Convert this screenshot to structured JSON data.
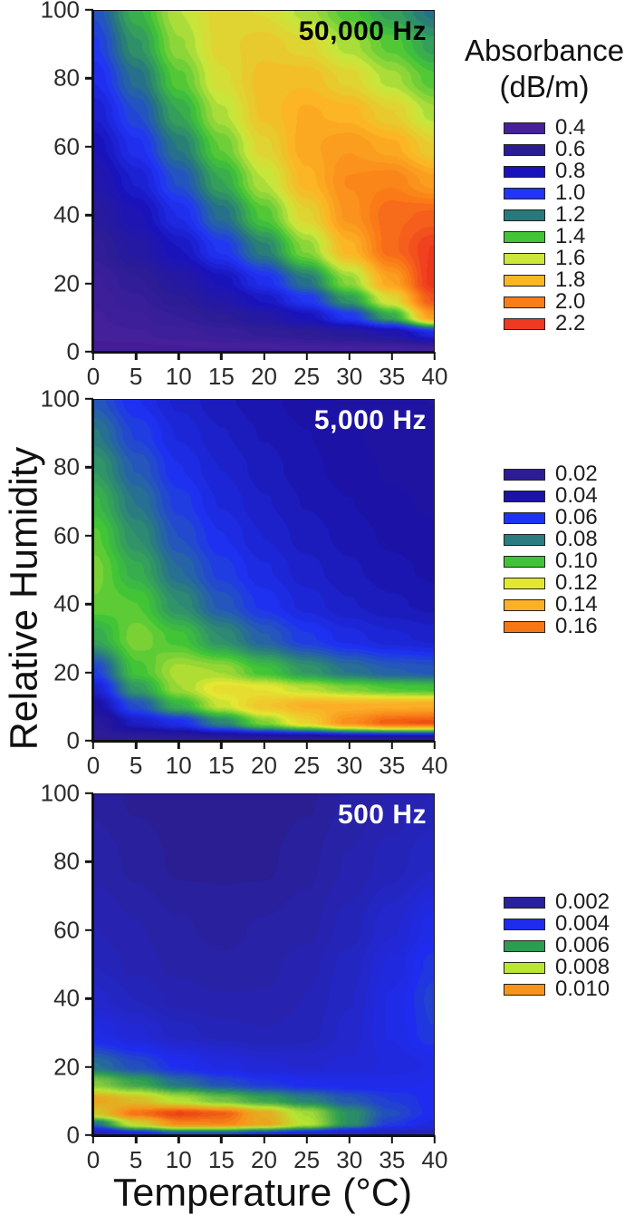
{
  "figure": {
    "xlabel": "Temperature (°C)",
    "ylabel": "Relative Humidity",
    "colorbar_title": "Absorbance",
    "colorbar_units": "(dB/m)"
  },
  "chart_data": [
    {
      "type": "heatmap",
      "title": "50,000 Hz",
      "title_color": "#000000",
      "x_axis": {
        "label": "Temperature (°C)",
        "range": [
          0,
          40
        ],
        "ticks": [
          0,
          5,
          10,
          15,
          20,
          25,
          30,
          35,
          40
        ]
      },
      "y_axis": {
        "label": "Relative Humidity",
        "range": [
          0,
          100
        ],
        "ticks": [
          0,
          20,
          40,
          60,
          80,
          100
        ]
      },
      "legend": {
        "labels": [
          "0.4",
          "0.6",
          "0.8",
          "1.0",
          "1.2",
          "1.4",
          "1.6",
          "1.8",
          "2.0",
          "2.2"
        ],
        "colors": [
          "#47209c",
          "#2b1c96",
          "#1a13bb",
          "#2134f7",
          "#27797c",
          "#41c437",
          "#cde63a",
          "#fcb525",
          "#fa7d18",
          "#ee3a20"
        ]
      },
      "colormap": {
        "levels": [
          0.3,
          0.4,
          0.6,
          0.8,
          1.0,
          1.2,
          1.4,
          1.6,
          1.8,
          2.0,
          2.2,
          2.3
        ],
        "colors": [
          "#33106b",
          "#47209c",
          "#2b1c96",
          "#1a13bb",
          "#2134f7",
          "#27797c",
          "#41c437",
          "#cde63a",
          "#fcb525",
          "#fa7d18",
          "#ee3a20",
          "#e02a10"
        ]
      },
      "grid": {
        "x": [
          0,
          5,
          10,
          15,
          20,
          25,
          30,
          35,
          40
        ],
        "y": [
          0,
          5,
          10,
          15,
          20,
          30,
          40,
          50,
          60,
          70,
          80,
          90,
          100
        ],
        "values": [
          [
            0.38,
            0.38,
            0.39,
            0.4,
            0.4,
            0.41,
            0.42,
            0.42,
            0.43
          ],
          [
            0.42,
            0.44,
            0.47,
            0.5,
            0.54,
            0.58,
            0.64,
            0.72,
            0.92
          ],
          [
            0.44,
            0.48,
            0.53,
            0.6,
            0.68,
            0.8,
            1.0,
            1.32,
            1.9
          ],
          [
            0.46,
            0.52,
            0.6,
            0.7,
            0.83,
            1.0,
            1.28,
            1.65,
            2.12
          ],
          [
            0.48,
            0.56,
            0.66,
            0.79,
            0.96,
            1.18,
            1.5,
            1.86,
            2.22
          ],
          [
            0.55,
            0.67,
            0.82,
            1.0,
            1.22,
            1.5,
            1.8,
            2.06,
            2.2
          ],
          [
            0.63,
            0.77,
            0.95,
            1.17,
            1.42,
            1.68,
            1.92,
            2.06,
            2.08
          ],
          [
            0.71,
            0.87,
            1.08,
            1.32,
            1.57,
            1.8,
            1.95,
            1.98,
            1.88
          ],
          [
            0.79,
            0.97,
            1.2,
            1.45,
            1.68,
            1.85,
            1.9,
            1.84,
            1.7
          ],
          [
            0.87,
            1.07,
            1.32,
            1.56,
            1.75,
            1.83,
            1.8,
            1.7,
            1.55
          ],
          [
            0.95,
            1.17,
            1.43,
            1.64,
            1.76,
            1.77,
            1.68,
            1.55,
            1.42
          ],
          [
            1.02,
            1.27,
            1.52,
            1.68,
            1.72,
            1.67,
            1.55,
            1.43,
            1.3
          ],
          [
            1.08,
            1.35,
            1.57,
            1.68,
            1.65,
            1.55,
            1.42,
            1.3,
            1.18
          ]
        ]
      }
    },
    {
      "type": "heatmap",
      "title": "5,000 Hz",
      "title_color": "#ffffff",
      "x_axis": {
        "label": "Temperature (°C)",
        "range": [
          0,
          40
        ],
        "ticks": [
          0,
          5,
          10,
          15,
          20,
          25,
          30,
          35,
          40
        ]
      },
      "y_axis": {
        "label": "Relative Humidity",
        "range": [
          0,
          100
        ],
        "ticks": [
          0,
          20,
          40,
          60,
          80,
          100
        ]
      },
      "legend": {
        "labels": [
          "0.02",
          "0.04",
          "0.06",
          "0.08",
          "0.10",
          "0.12",
          "0.14",
          "0.16"
        ],
        "colors": [
          "#2d1d95",
          "#1b12a6",
          "#1e32f2",
          "#2a7c80",
          "#3fc437",
          "#e2e832",
          "#fbb127",
          "#f87714"
        ]
      },
      "colormap": {
        "levels": [
          0.012,
          0.02,
          0.04,
          0.06,
          0.08,
          0.1,
          0.12,
          0.14,
          0.16,
          0.175
        ],
        "colors": [
          "#33106b",
          "#2d1d95",
          "#1b12a6",
          "#1e32f2",
          "#2a7c80",
          "#3fc437",
          "#e2e832",
          "#fbb127",
          "#f87714",
          "#e8300f"
        ]
      },
      "grid": {
        "x": [
          0,
          5,
          10,
          15,
          20,
          25,
          30,
          35,
          40
        ],
        "y": [
          0,
          5,
          10,
          15,
          20,
          30,
          40,
          50,
          60,
          70,
          80,
          90,
          100
        ],
        "values": [
          [
            0.02,
            0.021,
            0.022,
            0.023,
            0.024,
            0.025,
            0.026,
            0.026,
            0.026
          ],
          [
            0.026,
            0.048,
            0.058,
            0.082,
            0.108,
            0.128,
            0.152,
            0.166,
            0.168
          ],
          [
            0.038,
            0.068,
            0.095,
            0.117,
            0.132,
            0.14,
            0.14,
            0.141,
            0.142
          ],
          [
            0.05,
            0.088,
            0.112,
            0.124,
            0.122,
            0.115,
            0.108,
            0.102,
            0.1
          ],
          [
            0.064,
            0.1,
            0.114,
            0.112,
            0.1,
            0.088,
            0.078,
            0.072,
            0.07
          ],
          [
            0.092,
            0.108,
            0.1,
            0.085,
            0.072,
            0.062,
            0.056,
            0.052,
            0.05
          ],
          [
            0.105,
            0.102,
            0.085,
            0.07,
            0.06,
            0.053,
            0.048,
            0.045,
            0.043
          ],
          [
            0.107,
            0.093,
            0.075,
            0.063,
            0.055,
            0.049,
            0.045,
            0.042,
            0.04
          ],
          [
            0.103,
            0.085,
            0.068,
            0.058,
            0.051,
            0.046,
            0.043,
            0.04,
            0.038
          ],
          [
            0.096,
            0.078,
            0.063,
            0.054,
            0.048,
            0.044,
            0.041,
            0.038,
            0.037
          ],
          [
            0.088,
            0.071,
            0.058,
            0.051,
            0.046,
            0.042,
            0.039,
            0.037,
            0.036
          ],
          [
            0.079,
            0.064,
            0.054,
            0.048,
            0.044,
            0.041,
            0.038,
            0.036,
            0.035
          ],
          [
            0.07,
            0.058,
            0.05,
            0.045,
            0.042,
            0.039,
            0.037,
            0.035,
            0.034
          ]
        ]
      }
    },
    {
      "type": "heatmap",
      "title": "500 Hz",
      "title_color": "#ffffff",
      "x_axis": {
        "label": "Temperature (°C)",
        "range": [
          0,
          40
        ],
        "ticks": [
          0,
          5,
          10,
          15,
          20,
          25,
          30,
          35,
          40
        ]
      },
      "y_axis": {
        "label": "Relative Humidity",
        "range": [
          0,
          100
        ],
        "ticks": [
          0,
          20,
          40,
          60,
          80,
          100
        ]
      },
      "legend": {
        "labels": [
          "0.002",
          "0.004",
          "0.006",
          "0.008",
          "0.010"
        ],
        "colors": [
          "#29209c",
          "#1f2cf0",
          "#2d9c52",
          "#b8e632",
          "#f8941a"
        ]
      },
      "colormap": {
        "levels": [
          0.0012,
          0.002,
          0.004,
          0.006,
          0.008,
          0.01,
          0.0115
        ],
        "colors": [
          "#33106b",
          "#29209c",
          "#1f2cf0",
          "#2d9c52",
          "#b8e632",
          "#f8941a",
          "#e8300f"
        ]
      },
      "grid": {
        "x": [
          0,
          5,
          10,
          15,
          20,
          25,
          30,
          35,
          40
        ],
        "y": [
          0,
          3,
          6,
          10,
          15,
          20,
          30,
          40,
          50,
          60,
          80,
          100
        ],
        "values": [
          [
            0.0024,
            0.0036,
            0.0046,
            0.0046,
            0.004,
            0.0034,
            0.0029,
            0.0027,
            0.0026
          ],
          [
            0.0052,
            0.0085,
            0.0102,
            0.0103,
            0.0096,
            0.008,
            0.0058,
            0.0043,
            0.0036
          ],
          [
            0.0088,
            0.0105,
            0.0112,
            0.0108,
            0.0094,
            0.0077,
            0.0058,
            0.0046,
            0.004
          ],
          [
            0.0096,
            0.009,
            0.0079,
            0.007,
            0.0062,
            0.0055,
            0.0048,
            0.0043,
            0.004
          ],
          [
            0.0072,
            0.0062,
            0.0052,
            0.0046,
            0.0042,
            0.0039,
            0.0038,
            0.0038,
            0.0039
          ],
          [
            0.0052,
            0.0046,
            0.004,
            0.0036,
            0.0033,
            0.0032,
            0.0033,
            0.0035,
            0.0037
          ],
          [
            0.0037,
            0.0033,
            0.0029,
            0.0027,
            0.0026,
            0.0027,
            0.0031,
            0.0037,
            0.0043
          ],
          [
            0.0031,
            0.0028,
            0.0025,
            0.0024,
            0.0024,
            0.0026,
            0.003,
            0.0037,
            0.0044
          ],
          [
            0.0028,
            0.0025,
            0.0023,
            0.0022,
            0.0023,
            0.0025,
            0.0029,
            0.0035,
            0.0042
          ],
          [
            0.0026,
            0.0024,
            0.0022,
            0.0021,
            0.0022,
            0.0023,
            0.0027,
            0.0032,
            0.0038
          ],
          [
            0.0023,
            0.0021,
            0.0019,
            0.0019,
            0.0019,
            0.0021,
            0.0024,
            0.0027,
            0.003
          ],
          [
            0.0021,
            0.0019,
            0.0018,
            0.0018,
            0.0018,
            0.0019,
            0.0022,
            0.0024,
            0.0026
          ]
        ]
      }
    }
  ]
}
